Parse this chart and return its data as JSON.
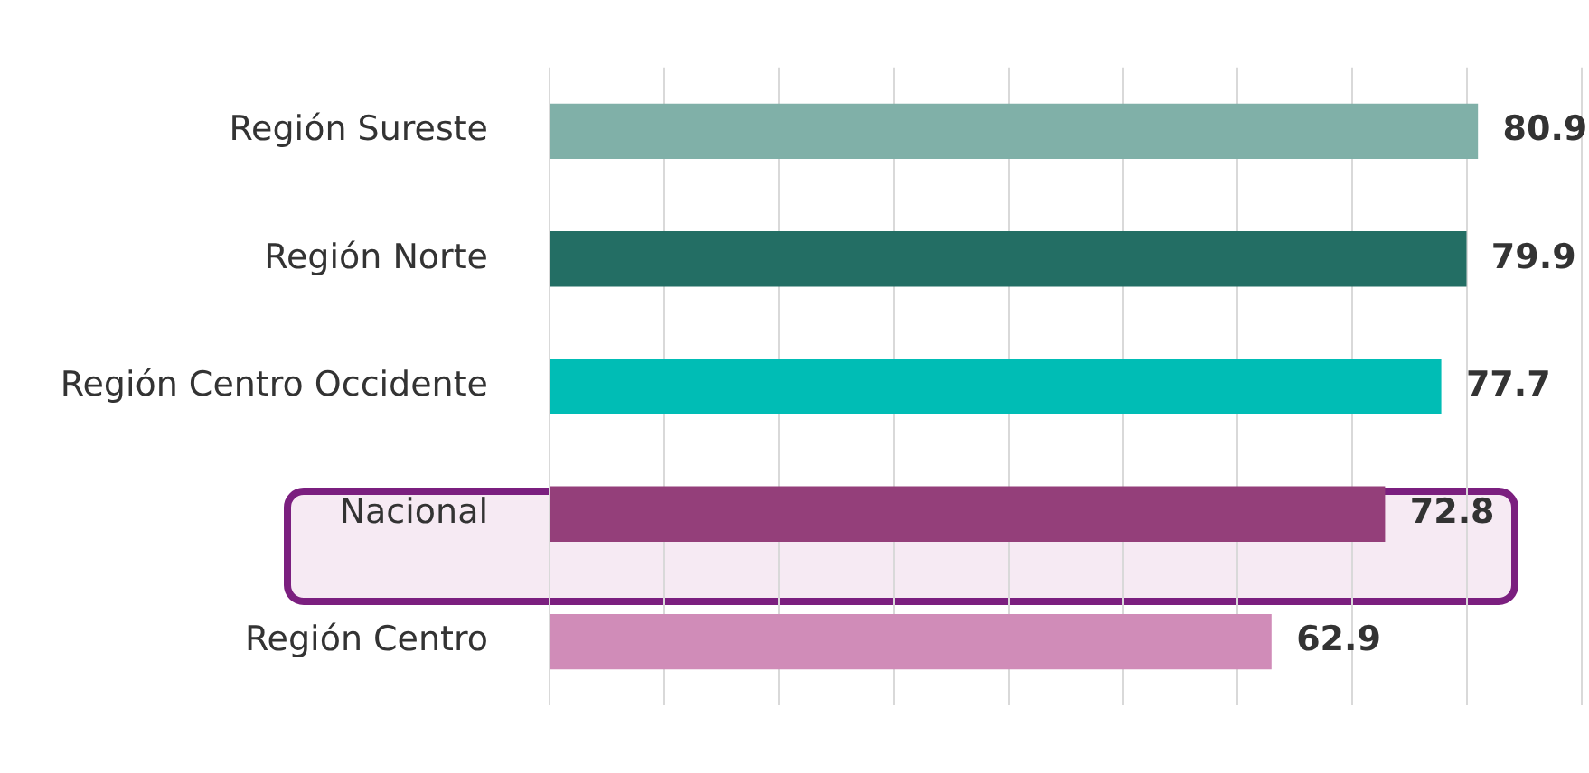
{
  "chart_data": {
    "type": "bar",
    "orientation": "horizontal",
    "categories": [
      "Región Sureste",
      "Región Norte",
      "Región Centro Occidente",
      "Nacional",
      "Región Centro"
    ],
    "values": [
      80.9,
      79.9,
      77.7,
      72.8,
      62.9
    ],
    "colors": [
      "#80b0a8",
      "#236e64",
      "#00bdb5",
      "#943f7a",
      "#d08cb8"
    ],
    "xlim": [
      0,
      90
    ],
    "xticks": [
      {
        "value": 0,
        "label": null
      },
      {
        "value": 10,
        "label": null
      },
      {
        "value": 20,
        "label": null
      },
      {
        "value": 30,
        "label": null
      },
      {
        "value": 40,
        "label": null
      },
      {
        "value": 50,
        "label": null
      },
      {
        "value": 60,
        "label": null
      },
      {
        "value": 70,
        "label": null
      },
      {
        "value": 80,
        "label": null
      },
      {
        "value": 90,
        "label": null
      }
    ],
    "grid": "x",
    "tick_labels": "y",
    "data_labels": true,
    "legend": false
  }
}
